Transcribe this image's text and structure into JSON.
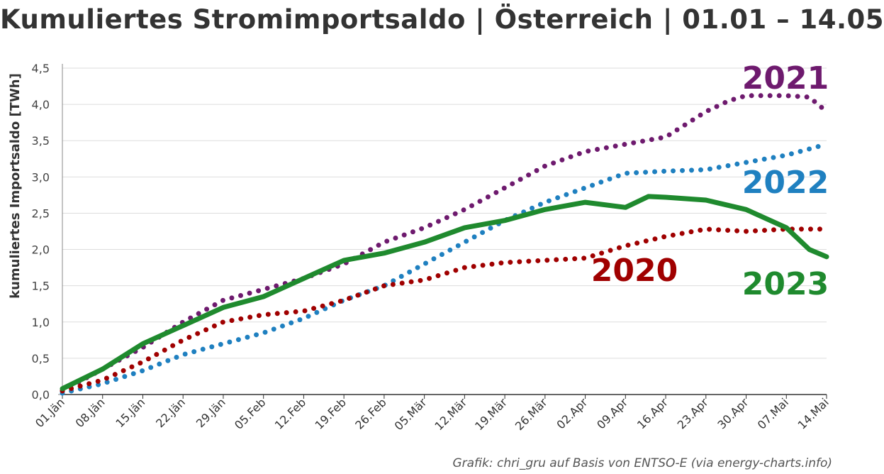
{
  "title": "Kumuliertes Stromimportsaldo | Österreich | 01.01 – 14.05",
  "credit": "Grafik: chri_gru auf Basis von ENTSO-E (via energy-charts.info)",
  "chart_data": {
    "type": "line",
    "title": "Kumuliertes Stromimportsaldo | Österreich | 01.01 – 14.05",
    "ylabel": "kumuliertes Importsaldo [TWh]",
    "xlabel": "",
    "ylim": [
      0,
      4.5
    ],
    "yticks": [
      "0,0",
      "0,5",
      "1,0",
      "1,5",
      "2,0",
      "2,5",
      "3,0",
      "3,5",
      "4,0",
      "4,5"
    ],
    "xticks": [
      "01.Jän",
      "08.Jän",
      "15.Jän",
      "22.Jän",
      "29.Jän",
      "05.Feb",
      "12.Feb",
      "19.Feb",
      "26.Feb",
      "05.Mär",
      "12.Mär",
      "19.Mär",
      "26.Mär",
      "02.Apr",
      "09.Apr",
      "16.Apr",
      "23.Apr",
      "30.Apr",
      "07.Mai",
      "14.Mai"
    ],
    "grid": true,
    "x_unit": "day of year (1 = 01.Jän)",
    "series": [
      {
        "name": "2021",
        "style": "dotted",
        "color": "#6e1a6e",
        "x": [
          1,
          8,
          15,
          22,
          29,
          36,
          43,
          50,
          57,
          64,
          71,
          78,
          85,
          92,
          99,
          106,
          113,
          117,
          120,
          127,
          131,
          134
        ],
        "y": [
          0.05,
          0.35,
          0.65,
          1.0,
          1.3,
          1.45,
          1.6,
          1.8,
          2.1,
          2.3,
          2.55,
          2.85,
          3.15,
          3.35,
          3.45,
          3.55,
          3.9,
          4.05,
          4.12,
          4.12,
          4.1,
          3.9
        ]
      },
      {
        "name": "2022",
        "style": "dotted",
        "color": "#1f80c0",
        "x": [
          1,
          8,
          15,
          22,
          29,
          36,
          43,
          50,
          57,
          64,
          71,
          78,
          85,
          92,
          99,
          106,
          113,
          120,
          127,
          134
        ],
        "y": [
          0.02,
          0.15,
          0.33,
          0.55,
          0.7,
          0.85,
          1.05,
          1.3,
          1.5,
          1.8,
          2.1,
          2.4,
          2.65,
          2.85,
          3.05,
          3.08,
          3.1,
          3.2,
          3.3,
          3.45
        ]
      },
      {
        "name": "2020",
        "style": "dotted",
        "color": "#a00000",
        "x": [
          1,
          8,
          15,
          22,
          29,
          36,
          43,
          50,
          57,
          64,
          71,
          78,
          85,
          92,
          99,
          106,
          113,
          120,
          127,
          134
        ],
        "y": [
          0.05,
          0.2,
          0.45,
          0.75,
          1.0,
          1.1,
          1.15,
          1.3,
          1.5,
          1.58,
          1.75,
          1.82,
          1.85,
          1.88,
          2.05,
          2.18,
          2.28,
          2.25,
          2.28,
          2.28
        ]
      },
      {
        "name": "2023",
        "style": "solid",
        "color": "#1f8a2e",
        "x": [
          1,
          8,
          15,
          22,
          29,
          36,
          43,
          50,
          57,
          64,
          71,
          78,
          85,
          92,
          99,
          103,
          106,
          113,
          120,
          127,
          131,
          134
        ],
        "y": [
          0.08,
          0.35,
          0.7,
          0.95,
          1.2,
          1.35,
          1.6,
          1.85,
          1.95,
          2.1,
          2.3,
          2.4,
          2.55,
          2.65,
          2.58,
          2.73,
          2.72,
          2.68,
          2.55,
          2.3,
          2.0,
          1.9
        ]
      }
    ],
    "series_labels": [
      {
        "text": "2021",
        "color": "#6e1a6e"
      },
      {
        "text": "2022",
        "color": "#1f80c0"
      },
      {
        "text": "2020",
        "color": "#a00000"
      },
      {
        "text": "2023",
        "color": "#1f8a2e"
      }
    ]
  }
}
